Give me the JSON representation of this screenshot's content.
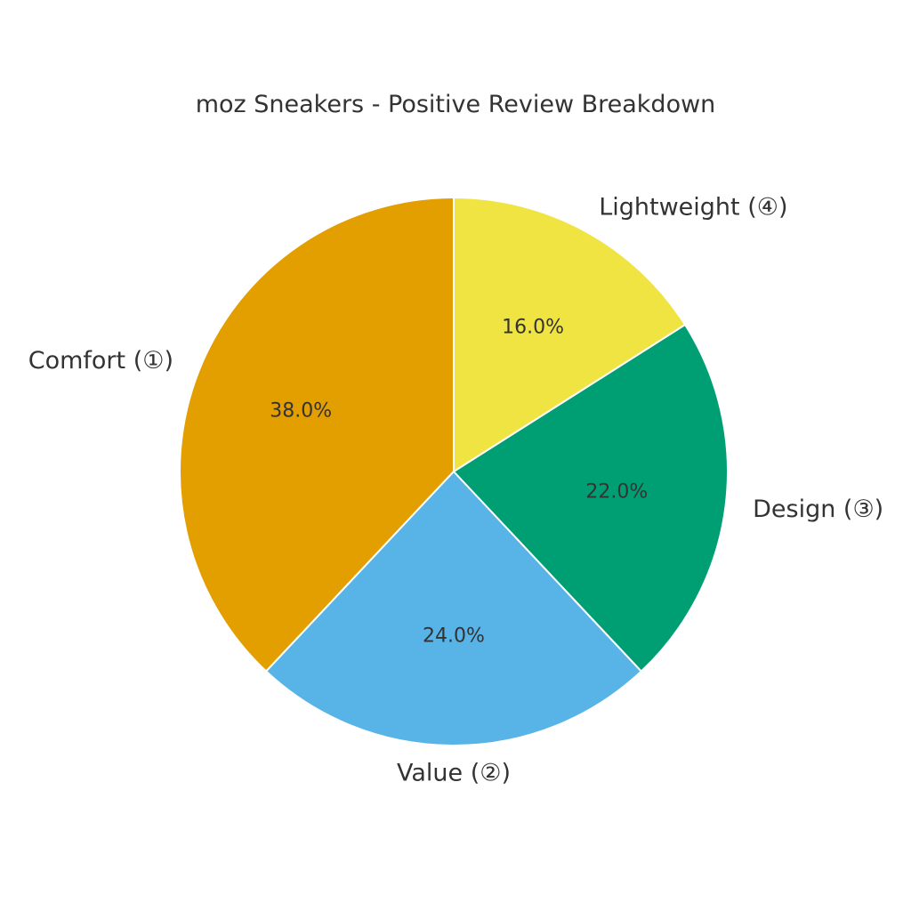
{
  "chart_data": {
    "type": "pie",
    "title": "moz Sneakers - Positive Review Breakdown",
    "categories": [
      "Comfort (①)",
      "Value (②)",
      "Design (③)",
      "Lightweight (④)"
    ],
    "values": [
      38.0,
      24.0,
      22.0,
      16.0
    ],
    "value_labels": [
      "38.0%",
      "24.0%",
      "22.0%",
      "16.0%"
    ],
    "colors": [
      "#E39F00",
      "#58B3E7",
      "#009F73",
      "#EFE442"
    ],
    "start_angle": "top (12 o'clock)",
    "direction": "counterclockwise",
    "legend": "none"
  }
}
